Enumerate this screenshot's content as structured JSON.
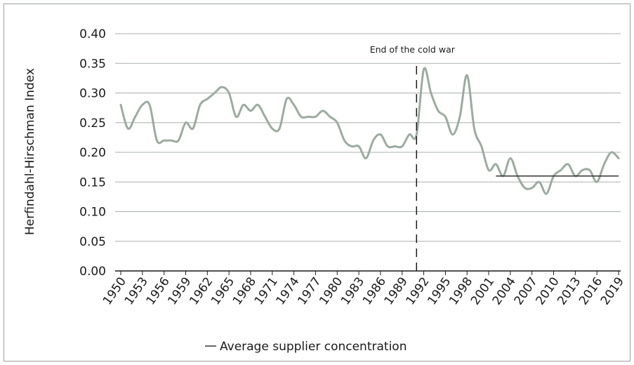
{
  "chart_data": {
    "type": "line",
    "xlabel": "",
    "ylabel": "Herfindahl-Hirschman Index",
    "ylim": [
      0,
      0.4
    ],
    "y_ticks": [
      "0.00",
      "0.05",
      "0.10",
      "0.15",
      "0.20",
      "0.25",
      "0.30",
      "0.35",
      "0.40"
    ],
    "x_ticks": [
      "1950",
      "1953",
      "1956",
      "1959",
      "1962",
      "1965",
      "1968",
      "1971",
      "1974",
      "1977",
      "1980",
      "1983",
      "1986",
      "1989",
      "1992",
      "1995",
      "1998",
      "2001",
      "2004",
      "2007",
      "2010",
      "2013",
      "2016",
      "2019"
    ],
    "xlim": [
      1950,
      2019
    ],
    "grid": "horizontal",
    "annotation": {
      "text": "End of the cold war",
      "x": 1991
    },
    "series": [
      {
        "color": "#9cab9f",
        "x": [
          1950,
          1951,
          1952,
          1953,
          1954,
          1955,
          1956,
          1957,
          1958,
          1959,
          1960,
          1961,
          1962,
          1963,
          1964,
          1965,
          1966,
          1967,
          1968,
          1969,
          1970,
          1971,
          1972,
          1973,
          1974,
          1975,
          1976,
          1977,
          1978,
          1979,
          1980,
          1981,
          1982,
          1983,
          1984,
          1985,
          1986,
          1987,
          1988,
          1989,
          1990,
          1991,
          1992,
          1993,
          1994,
          1995,
          1996,
          1997,
          1998,
          1999,
          2000,
          2001,
          2002,
          2003,
          2004,
          2005,
          2006,
          2007,
          2008,
          2009,
          2010,
          2011,
          2012,
          2013,
          2014,
          2015,
          2016,
          2017,
          2018,
          2019
        ],
        "values": [
          0.28,
          0.24,
          0.26,
          0.28,
          0.28,
          0.22,
          0.22,
          0.22,
          0.22,
          0.25,
          0.24,
          0.28,
          0.29,
          0.3,
          0.31,
          0.3,
          0.26,
          0.28,
          0.27,
          0.28,
          0.26,
          0.24,
          0.24,
          0.29,
          0.28,
          0.26,
          0.26,
          0.26,
          0.27,
          0.26,
          0.25,
          0.22,
          0.21,
          0.21,
          0.19,
          0.22,
          0.23,
          0.21,
          0.21,
          0.21,
          0.23,
          0.23,
          0.34,
          0.3,
          0.27,
          0.26,
          0.23,
          0.26,
          0.33,
          0.24,
          0.21,
          0.17,
          0.18,
          0.16,
          0.19,
          0.16,
          0.14,
          0.14,
          0.15,
          0.13,
          0.16,
          0.17,
          0.18,
          0.16,
          0.17,
          0.17,
          0.15,
          0.18,
          0.2,
          0.19
        ]
      },
      {
        "name": "Average supplier concentration",
        "color": "#333333",
        "x": [
          2002,
          2019
        ],
        "values": [
          0.16,
          0.16
        ]
      }
    ],
    "legend": {
      "position": "bottom"
    }
  }
}
